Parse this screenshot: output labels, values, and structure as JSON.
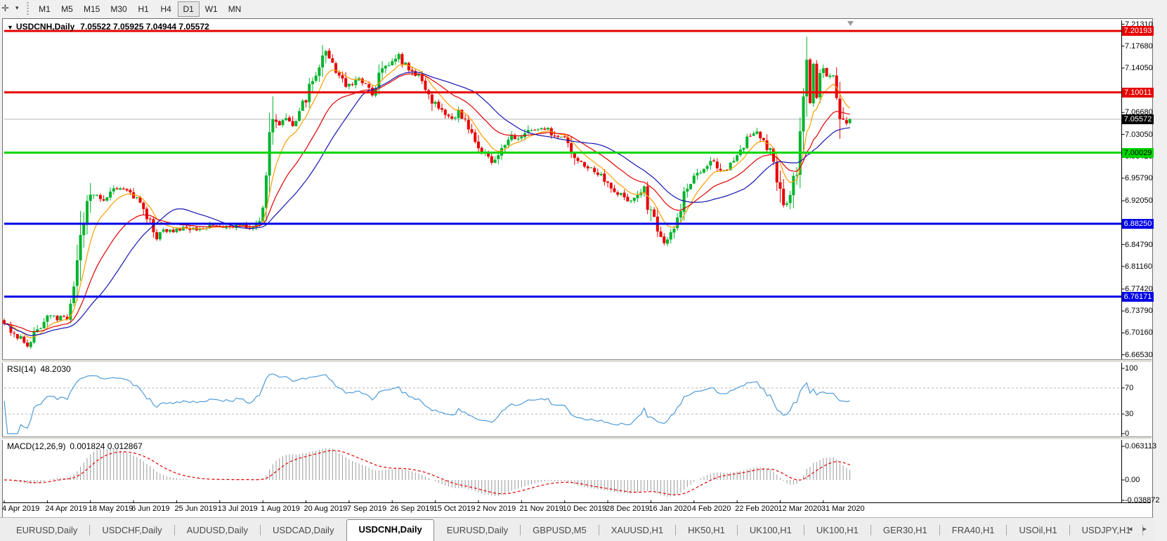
{
  "toolbar": {
    "pointer_tool": {
      "glyph": "✛",
      "caret_glyph": "▾"
    },
    "timeframes": [
      "M1",
      "M5",
      "M15",
      "M30",
      "H1",
      "H4",
      "D1",
      "W1",
      "MN"
    ],
    "active_timeframe": "D1"
  },
  "chart_data": {
    "type": "candlestick",
    "symbol_display": "USDCNH,Daily",
    "dropdown_icon_glyph": "▼",
    "ohlc_text": "7.05522 7.05925 7.04944 7.05572",
    "ohlc": {
      "open": 7.05522,
      "high": 7.05925,
      "low": 7.04944,
      "close": 7.05572
    },
    "bar_count": 256,
    "bars_per_date_label": 13,
    "date_labels": [
      "4 Apr 2019",
      "24 Apr 2019",
      "18 May 2019",
      "6 Jun 2019",
      "25 Jun 2019",
      "13 Jul 2019",
      "1 Aug 2019",
      "20 Aug 2019",
      "7 Sep 2019",
      "26 Sep 2019",
      "15 Oct 2019",
      "2 Nov 2019",
      "21 Nov 2019",
      "10 Dec 2019",
      "28 Dec 2019",
      "16 Jan 2020",
      "4 Feb 2020",
      "22 Feb 2020",
      "12 Mar 2020",
      "31 Mar 2020"
    ],
    "price_axis_ticks": [
      "7.21310",
      "7.17680",
      "7.14050",
      "7.06680",
      "7.03050",
      "6.99420",
      "6.95790",
      "6.92050",
      "6.84790",
      "6.81160",
      "6.77420",
      "6.73790",
      "6.70160",
      "6.66530"
    ],
    "price_range": {
      "max": 7.2131,
      "min": 6.6653
    },
    "current_price": {
      "value": 7.05572,
      "label": "7.05572",
      "line_color": "#b4b4b4",
      "box_color": "#000000",
      "text_color": "#ffffff"
    },
    "levels": [
      {
        "label": "7.20193",
        "value": 7.20193,
        "color": "#e60000",
        "text_color": "#ffffff"
      },
      {
        "label": "7.10011",
        "value": 7.10011,
        "color": "#e60000",
        "text_color": "#ffffff"
      },
      {
        "label": "7.00029",
        "value": 7.00029,
        "color": "#00d500",
        "text_color": "#000000"
      },
      {
        "label": "6.88250",
        "value": 6.8825,
        "color": "#0000e6",
        "text_color": "#ffffff"
      },
      {
        "label": "6.76171",
        "value": 6.76171,
        "color": "#0000e6",
        "text_color": "#ffffff"
      }
    ],
    "candle_colors": {
      "up": "#00b32c",
      "down": "#e80000"
    },
    "moving_averages": [
      {
        "type": "ema",
        "period": 8,
        "color": "#ff9c00"
      },
      {
        "type": "ema",
        "period": 21,
        "color": "#e00000"
      },
      {
        "type": "sma",
        "period": 30,
        "color": "#1414b4"
      }
    ],
    "close_waypoints": [
      [
        0,
        6.716
      ],
      [
        2,
        6.706
      ],
      [
        5,
        6.692
      ],
      [
        7,
        6.684
      ],
      [
        9,
        6.702
      ],
      [
        12,
        6.72
      ],
      [
        14,
        6.733
      ],
      [
        16,
        6.726
      ],
      [
        19,
        6.736
      ],
      [
        21,
        6.775
      ],
      [
        23,
        6.865
      ],
      [
        25,
        6.923
      ],
      [
        27,
        6.934
      ],
      [
        29,
        6.921
      ],
      [
        31,
        6.928
      ],
      [
        33,
        6.944
      ],
      [
        35,
        6.939
      ],
      [
        38,
        6.933
      ],
      [
        41,
        6.916
      ],
      [
        44,
        6.884
      ],
      [
        46,
        6.858
      ],
      [
        48,
        6.872
      ],
      [
        51,
        6.869
      ],
      [
        54,
        6.877
      ],
      [
        58,
        6.872
      ],
      [
        62,
        6.879
      ],
      [
        66,
        6.875
      ],
      [
        70,
        6.88
      ],
      [
        74,
        6.877
      ],
      [
        78,
        6.89
      ],
      [
        79,
        6.944
      ],
      [
        80,
        7.037
      ],
      [
        81,
        7.053
      ],
      [
        83,
        7.046
      ],
      [
        85,
        7.058
      ],
      [
        87,
        7.048
      ],
      [
        89,
        7.072
      ],
      [
        91,
        7.088
      ],
      [
        93,
        7.122
      ],
      [
        95,
        7.145
      ],
      [
        97,
        7.168
      ],
      [
        99,
        7.152
      ],
      [
        101,
        7.128
      ],
      [
        103,
        7.108
      ],
      [
        105,
        7.118
      ],
      [
        107,
        7.13
      ],
      [
        109,
        7.112
      ],
      [
        111,
        7.1
      ],
      [
        113,
        7.126
      ],
      [
        115,
        7.143
      ],
      [
        117,
        7.152
      ],
      [
        119,
        7.159
      ],
      [
        121,
        7.146
      ],
      [
        123,
        7.134
      ],
      [
        125,
        7.125
      ],
      [
        127,
        7.113
      ],
      [
        129,
        7.088
      ],
      [
        131,
        7.072
      ],
      [
        133,
        7.062
      ],
      [
        135,
        7.056
      ],
      [
        137,
        7.068
      ],
      [
        139,
        7.056
      ],
      [
        141,
        7.036
      ],
      [
        143,
        7.008
      ],
      [
        145,
        6.995
      ],
      [
        147,
        6.985
      ],
      [
        149,
        7.002
      ],
      [
        151,
        7.018
      ],
      [
        153,
        7.03
      ],
      [
        155,
        7.022
      ],
      [
        157,
        7.032
      ],
      [
        159,
        7.04
      ],
      [
        161,
        7.035
      ],
      [
        163,
        7.042
      ],
      [
        165,
        7.03
      ],
      [
        167,
        7.026
      ],
      [
        169,
        7.022
      ],
      [
        171,
        7.004
      ],
      [
        173,
        6.99
      ],
      [
        175,
        6.978
      ],
      [
        177,
        6.972
      ],
      [
        179,
        6.966
      ],
      [
        181,
        6.957
      ],
      [
        183,
        6.944
      ],
      [
        185,
        6.934
      ],
      [
        187,
        6.924
      ],
      [
        189,
        6.918
      ],
      [
        191,
        6.928
      ],
      [
        193,
        6.934
      ],
      [
        195,
        6.9
      ],
      [
        197,
        6.866
      ],
      [
        199,
        6.854
      ],
      [
        201,
        6.868
      ],
      [
        203,
        6.898
      ],
      [
        205,
        6.93
      ],
      [
        207,
        6.952
      ],
      [
        209,
        6.964
      ],
      [
        211,
        6.972
      ],
      [
        213,
        6.988
      ],
      [
        215,
        6.978
      ],
      [
        217,
        6.97
      ],
      [
        219,
        6.986
      ],
      [
        221,
        6.998
      ],
      [
        223,
        7.014
      ],
      [
        225,
        7.03
      ],
      [
        227,
        7.032
      ],
      [
        229,
        7.018
      ],
      [
        231,
        6.998
      ],
      [
        233,
        6.966
      ],
      [
        234,
        6.94
      ],
      [
        235,
        6.916
      ],
      [
        236,
        6.902
      ],
      [
        237,
        6.93
      ],
      [
        238,
        6.962
      ],
      [
        239,
        6.986
      ],
      [
        240,
        7.03
      ],
      [
        241,
        7.08
      ],
      [
        242,
        7.138
      ],
      [
        243,
        7.1
      ],
      [
        244,
        7.134
      ],
      [
        245,
        7.094
      ],
      [
        246,
        7.122
      ],
      [
        247,
        7.138
      ],
      [
        248,
        7.124
      ],
      [
        249,
        7.142
      ],
      [
        250,
        7.118
      ],
      [
        251,
        7.082
      ],
      [
        252,
        7.06
      ],
      [
        253,
        7.066
      ],
      [
        254,
        7.05
      ],
      [
        255,
        7.05572
      ]
    ],
    "rsi": {
      "label": "RSI(14)",
      "value": "48.2030",
      "period": 14,
      "axis_labels": [
        "100",
        "70",
        "30",
        "0"
      ],
      "dashed_levels": [
        70,
        30
      ],
      "line_color": "#4f9bd8"
    },
    "macd": {
      "label": "MACD(12,26,9)",
      "values": "0.001824 0.012867",
      "fast": 12,
      "slow": 26,
      "signal": 9,
      "axis_labels": [
        "0.063113",
        "0.00",
        "-0.038872"
      ],
      "histogram_color": "#999999",
      "signal_color": "#e00000"
    }
  },
  "tabbar": {
    "tabs": [
      "EURUSD,Daily",
      "USDCHF,Daily",
      "AUDUSD,Daily",
      "USDCAD,Daily",
      "USDCNH,Daily",
      "EURUSD,Daily",
      "GBPUSD,M5",
      "XAUUSD,H1",
      "HK50,H1",
      "UK100,H1",
      "UK100,H1",
      "GER30,H1",
      "FRA40,H1",
      "USOil,H1",
      "USDJPY,H1"
    ],
    "active_index": 4,
    "prev_icon": "◂",
    "next_icon": "▸"
  }
}
